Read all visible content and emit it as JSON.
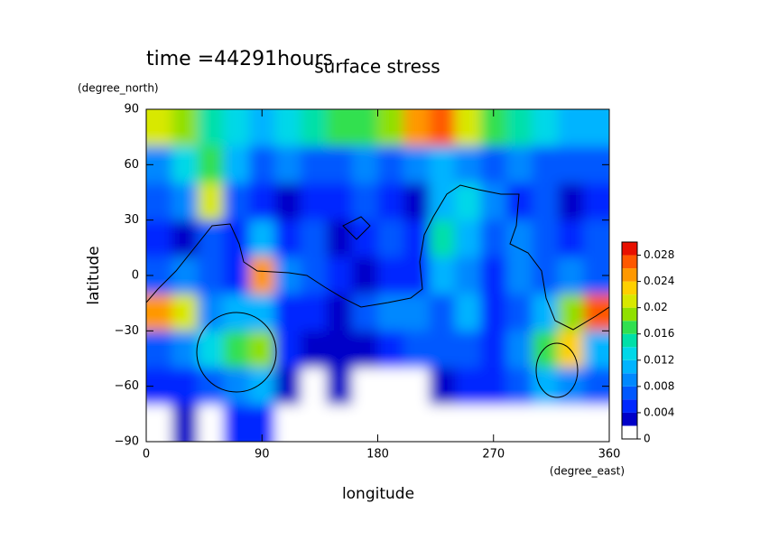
{
  "chart_data": {
    "type": "contour",
    "title": "surface stress",
    "subtitle": "time =44291hours",
    "x_label": "longitude",
    "x_unit": "(degree_east)",
    "y_label": "latitude",
    "y_unit": "(degree_north)",
    "xlim": [
      0,
      360
    ],
    "ylim": [
      -90,
      90
    ],
    "xticks": [
      0,
      90,
      180,
      270,
      360
    ],
    "yticks": [
      {
        "value": -90,
        "label": "−90"
      },
      {
        "value": -60,
        "label": "−60"
      },
      {
        "value": -30,
        "label": "−30"
      },
      0,
      30,
      60,
      90
    ],
    "lon": [
      10,
      30,
      50,
      70,
      90,
      110,
      130,
      150,
      170,
      190,
      210,
      230,
      250,
      270,
      290,
      310,
      330,
      350
    ],
    "lat": [
      80,
      60,
      40,
      20,
      0,
      -20,
      -40,
      -60,
      -80
    ],
    "z": [
      [
        0.02,
        0.018,
        0.014,
        0.012,
        0.01,
        0.012,
        0.014,
        0.016,
        0.016,
        0.018,
        0.024,
        0.026,
        0.02,
        0.016,
        0.014,
        0.012,
        0.01,
        0.01
      ],
      [
        0.008,
        0.012,
        0.016,
        0.01,
        0.006,
        0.008,
        0.006,
        0.006,
        0.008,
        0.006,
        0.008,
        0.01,
        0.008,
        0.006,
        0.008,
        0.006,
        0.006,
        0.006
      ],
      [
        0.006,
        0.008,
        0.02,
        0.006,
        0.004,
        0.002,
        0.004,
        0.004,
        0.006,
        0.004,
        0.002,
        0.01,
        0.012,
        0.008,
        0.004,
        0.006,
        0.002,
        0.004
      ],
      [
        0.004,
        0.002,
        0.006,
        0.004,
        0.01,
        0.004,
        0.006,
        0.002,
        0.004,
        0.006,
        0.004,
        0.014,
        0.01,
        0.006,
        0.008,
        0.006,
        0.004,
        0.006
      ],
      [
        0.006,
        0.008,
        0.006,
        0.004,
        0.024,
        0.008,
        0.006,
        0.004,
        0.002,
        0.004,
        0.004,
        0.01,
        0.008,
        0.004,
        0.008,
        0.006,
        0.008,
        0.006
      ],
      [
        0.024,
        0.02,
        0.008,
        0.01,
        0.01,
        0.004,
        0.004,
        0.002,
        0.006,
        0.008,
        0.008,
        0.006,
        0.01,
        0.004,
        0.006,
        0.01,
        0.018,
        0.026
      ],
      [
        0.006,
        0.008,
        0.012,
        0.016,
        0.018,
        0.004,
        0.002,
        0.002,
        0.002,
        0.004,
        0.006,
        0.006,
        0.006,
        0.004,
        0.008,
        0.016,
        0.022,
        0.01
      ],
      [
        0.004,
        0.004,
        0.006,
        0.008,
        0.01,
        0.002,
        0,
        0.002,
        0,
        0,
        0,
        0.002,
        0.004,
        0.004,
        0.006,
        0.01,
        0.008,
        0.006
      ],
      [
        0,
        0.002,
        0,
        0.004,
        0.004,
        0,
        0,
        0,
        0,
        0,
        0,
        0,
        0,
        0,
        0,
        0,
        0,
        0
      ]
    ],
    "levels": [
      0,
      0.002,
      0.004,
      0.006,
      0.008,
      0.01,
      0.012,
      0.014,
      0.016,
      0.018,
      0.02,
      0.022,
      0.024,
      0.026,
      0.028,
      0.03
    ],
    "colors": [
      "#ffffff",
      "#0000c8",
      "#0028ff",
      "#0058ff",
      "#0088ff",
      "#00b4ff",
      "#00d8e8",
      "#00e0a8",
      "#30e050",
      "#90e000",
      "#d8e800",
      "#ffd000",
      "#ff9800",
      "#ff5800",
      "#e81000"
    ],
    "colorbar_ticks": [
      0,
      0.004,
      0.008,
      0.012,
      0.016,
      0.02,
      0.024,
      0.028
    ]
  }
}
